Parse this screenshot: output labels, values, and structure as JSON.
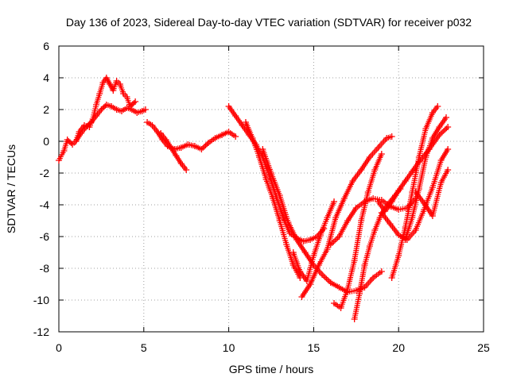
{
  "chart_data": {
    "type": "scatter",
    "title": "Day 136 of 2023, Sidereal Day-to-day VTEC variation (SDTVAR) for receiver p032",
    "xlabel": "GPS time / hours",
    "ylabel": "SDTVAR / TECUs",
    "xlim": [
      0,
      25
    ],
    "ylim": [
      -12,
      6
    ],
    "xticks": [
      0,
      5,
      10,
      15,
      20,
      25
    ],
    "yticks": [
      -12,
      -10,
      -8,
      -6,
      -4,
      -2,
      0,
      2,
      4,
      6
    ],
    "grid": true,
    "marker": "+",
    "color": "#ff0000",
    "series": [
      {
        "x": [
          0.0,
          0.3,
          0.5,
          0.8,
          1.0,
          1.2,
          1.5,
          1.8,
          2.0,
          2.2,
          2.4,
          2.6,
          2.8,
          3.0,
          3.2,
          3.4,
          3.6,
          3.8,
          4.0,
          4.2,
          4.5
        ],
        "y": [
          -1.2,
          -0.6,
          0.1,
          -0.2,
          0.0,
          0.6,
          1.0,
          0.9,
          1.4,
          2.3,
          3.0,
          3.7,
          4.0,
          3.6,
          3.2,
          3.8,
          3.6,
          3.0,
          2.8,
          2.2,
          2.5
        ]
      },
      {
        "x": [
          1.0,
          1.3,
          1.6,
          1.9,
          2.2,
          2.5,
          2.8,
          3.1,
          3.4,
          3.7,
          4.0,
          4.3,
          4.6,
          4.9,
          5.1
        ],
        "y": [
          0.0,
          0.5,
          0.9,
          1.2,
          1.6,
          2.0,
          2.3,
          2.2,
          2.0,
          1.9,
          2.1,
          2.0,
          1.8,
          1.9,
          2.0
        ]
      },
      {
        "x": [
          5.2,
          5.5,
          5.8,
          6.1,
          6.4,
          6.8,
          7.2,
          7.6,
          8.0,
          8.4,
          8.8,
          9.2,
          9.6,
          10.0,
          10.4
        ],
        "y": [
          1.2,
          1.0,
          0.6,
          0.1,
          -0.3,
          -0.5,
          -0.4,
          -0.2,
          -0.3,
          -0.5,
          -0.1,
          0.2,
          0.4,
          0.6,
          0.3
        ]
      },
      {
        "x": [
          6.0,
          6.3,
          6.6,
          6.9,
          7.2,
          7.5
        ],
        "y": [
          0.5,
          0.1,
          -0.4,
          -0.9,
          -1.4,
          -1.8
        ]
      },
      {
        "x": [
          10.0,
          10.4,
          10.8,
          11.2,
          11.6,
          12.0,
          12.4,
          12.8,
          13.2,
          13.6,
          14.0,
          14.4,
          14.8,
          15.2,
          15.6
        ],
        "y": [
          2.2,
          1.6,
          1.0,
          0.4,
          -0.2,
          -1.0,
          -2.2,
          -3.5,
          -4.8,
          -5.8,
          -6.1,
          -6.3,
          -6.2,
          -6.0,
          -5.5
        ]
      },
      {
        "x": [
          11.0,
          11.4,
          11.8,
          12.2,
          12.6,
          13.0,
          13.4,
          13.8,
          14.2
        ],
        "y": [
          1.2,
          0.2,
          -1.0,
          -2.4,
          -3.6,
          -5.0,
          -6.5,
          -7.8,
          -8.6
        ]
      },
      {
        "x": [
          12.0,
          12.5,
          13.0,
          13.5,
          14.0,
          14.5,
          15.0,
          15.5,
          16.0,
          16.5,
          17.0,
          17.5,
          18.0,
          18.5,
          19.0
        ],
        "y": [
          -0.5,
          -2.0,
          -3.4,
          -5.1,
          -6.2,
          -7.0,
          -7.8,
          -8.4,
          -8.9,
          -9.2,
          -9.5,
          -9.4,
          -9.2,
          -8.6,
          -8.2
        ]
      },
      {
        "x": [
          14.3,
          14.8,
          15.3,
          15.8,
          16.3,
          16.8,
          17.3,
          17.8,
          18.3,
          18.8,
          19.3,
          19.6
        ],
        "y": [
          -9.8,
          -9.0,
          -7.8,
          -6.8,
          -4.8,
          -3.6,
          -2.5,
          -1.8,
          -1.0,
          -0.4,
          0.2,
          0.3
        ]
      },
      {
        "x": [
          13.8,
          14.2,
          14.6,
          15.0,
          15.4,
          15.8,
          16.2
        ],
        "y": [
          -7.0,
          -8.2,
          -8.8,
          -7.2,
          -5.9,
          -4.8,
          -3.8
        ]
      },
      {
        "x": [
          16.2,
          16.6,
          17.0,
          17.4,
          17.8,
          18.2,
          18.6,
          19.0
        ],
        "y": [
          -10.2,
          -10.5,
          -9.3,
          -7.5,
          -5.0,
          -3.2,
          -1.8,
          -0.8
        ]
      },
      {
        "x": [
          17.4,
          17.7,
          18.0,
          18.3,
          18.6,
          18.9,
          19.2,
          19.5,
          19.8,
          20.1
        ],
        "y": [
          -11.2,
          -9.6,
          -7.8,
          -6.6,
          -5.6,
          -4.8,
          -4.2,
          -3.8,
          -3.4,
          -3.0
        ]
      },
      {
        "x": [
          16.0,
          16.5,
          17.0,
          17.5,
          18.0,
          18.5,
          19.0,
          19.5,
          20.0,
          20.5,
          21.0
        ],
        "y": [
          -6.5,
          -6.0,
          -5.0,
          -4.2,
          -3.8,
          -3.6,
          -3.7,
          -4.1,
          -4.3,
          -4.2,
          -3.6
        ]
      },
      {
        "x": [
          19.6,
          20.0,
          20.4,
          20.8,
          21.2,
          21.6,
          22.0,
          22.3
        ],
        "y": [
          -8.6,
          -7.2,
          -5.4,
          -3.2,
          -1.0,
          0.8,
          1.8,
          2.2
        ]
      },
      {
        "x": [
          20.4,
          20.8,
          21.2,
          21.6,
          22.0,
          22.4,
          22.8
        ],
        "y": [
          -6.2,
          -4.8,
          -3.0,
          -1.0,
          0.2,
          0.9,
          1.5
        ]
      },
      {
        "x": [
          19.0,
          19.5,
          20.0,
          20.5,
          21.0,
          21.5,
          22.0,
          22.5,
          22.9
        ],
        "y": [
          -4.5,
          -5.2,
          -5.9,
          -6.2,
          -5.6,
          -4.3,
          -2.9,
          -1.2,
          -0.5
        ]
      },
      {
        "x": [
          21.0,
          21.5,
          22.0,
          22.5,
          22.9
        ],
        "y": [
          -3.2,
          -3.9,
          -4.7,
          -2.6,
          -1.8
        ]
      },
      {
        "x": [
          18.8,
          19.2,
          19.6,
          20.0,
          20.4,
          20.8,
          21.2,
          21.8,
          22.4,
          22.9
        ],
        "y": [
          -3.8,
          -4.4,
          -3.8,
          -3.1,
          -2.5,
          -1.9,
          -1.3,
          -0.5,
          0.4,
          0.9
        ]
      }
    ]
  }
}
